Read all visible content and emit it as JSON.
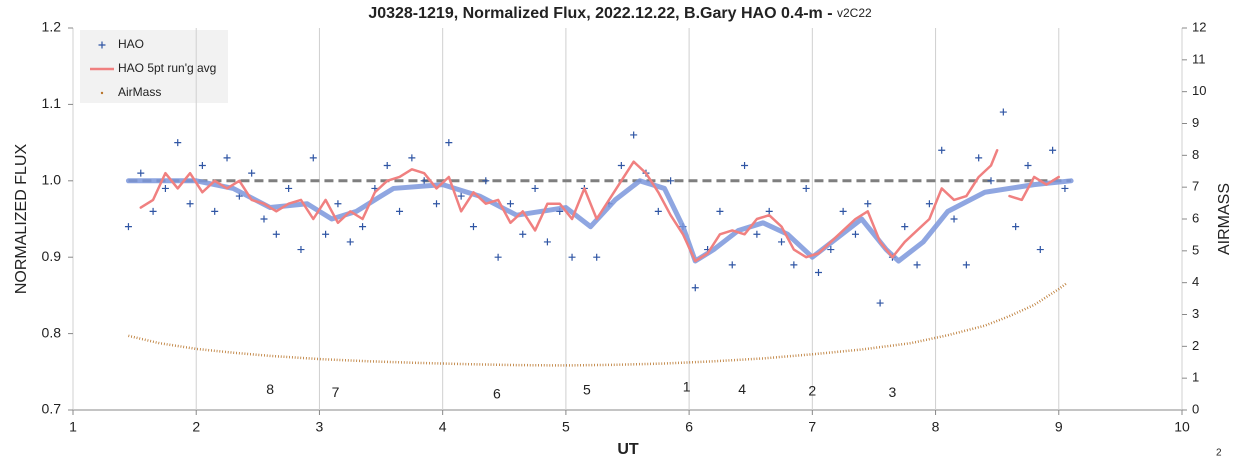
{
  "chart_data": {
    "type": "line",
    "title": "J0328-1219, Normalized Flux, 2022.12.22, B.Gary HAO 0.4-m - ",
    "subtitle": "v2C22",
    "x_label": "UT",
    "y_label": "NORMALIZED FLUX",
    "y2_label": "AIRMASS",
    "xlim": [
      1,
      10
    ],
    "xticks": [
      1,
      2,
      3,
      4,
      5,
      6,
      7,
      8,
      9,
      10
    ],
    "ylim": [
      0.7,
      1.2
    ],
    "yticks": [
      0.7,
      0.8,
      0.9,
      {
        "value": 1,
        "label": "1.0"
      },
      1.1,
      1.2
    ],
    "y2lim": [
      0,
      12
    ],
    "y2ticks": [
      0,
      1,
      2,
      3,
      4,
      5,
      6,
      7,
      8,
      9,
      10,
      11,
      12
    ],
    "grid": "x",
    "legend": "top-left",
    "series": [
      {
        "type": "line",
        "color": "#7f7f7f",
        "dash": true,
        "line_width": 3,
        "x": [
          1.45,
          9.1
        ],
        "values": [
          1,
          1
        ]
      },
      {
        "name": "HAO",
        "type": "scatter",
        "color": "#2f55a4",
        "x": [
          1.45,
          1.55,
          1.65,
          1.75,
          1.85,
          1.95,
          2.05,
          2.15,
          2.25,
          2.35,
          2.45,
          2.55,
          2.65,
          2.75,
          2.85,
          2.95,
          3.05,
          3.15,
          3.25,
          3.35,
          3.45,
          3.55,
          3.65,
          3.75,
          3.85,
          3.95,
          4.05,
          4.15,
          4.25,
          4.35,
          4.45,
          4.55,
          4.65,
          4.75,
          4.85,
          4.95,
          5.05,
          5.15,
          5.25,
          5.35,
          5.45,
          5.55,
          5.65,
          5.75,
          5.85,
          5.95,
          6.05,
          6.15,
          6.25,
          6.35,
          6.45,
          6.55,
          6.65,
          6.75,
          6.85,
          6.95,
          7.05,
          7.15,
          7.25,
          7.35,
          7.45,
          7.55,
          7.65,
          7.75,
          7.85,
          7.95,
          8.05,
          8.15,
          8.25,
          8.35,
          8.45,
          8.55,
          8.65,
          8.75,
          8.85,
          8.95,
          9.05
        ],
        "values": [
          0.94,
          1.01,
          0.96,
          0.99,
          1.05,
          0.97,
          1.02,
          0.96,
          1.03,
          0.98,
          1.01,
          0.95,
          0.93,
          0.99,
          0.91,
          1.03,
          0.93,
          0.97,
          0.92,
          0.94,
          0.99,
          1.02,
          0.96,
          1.03,
          1.0,
          0.97,
          1.05,
          0.98,
          0.94,
          1.0,
          0.9,
          0.97,
          0.93,
          0.99,
          0.92,
          0.96,
          0.9,
          0.99,
          0.9,
          0.97,
          1.02,
          1.06,
          1.01,
          0.96,
          1.0,
          0.94,
          0.86,
          0.91,
          0.96,
          0.89,
          1.02,
          0.93,
          0.96,
          0.92,
          0.89,
          0.99,
          0.88,
          0.91,
          0.96,
          0.93,
          0.97,
          0.84,
          0.9,
          0.94,
          0.89,
          0.97,
          1.04,
          0.95,
          0.89,
          1.03,
          1.0,
          1.09,
          0.94,
          1.02,
          0.91,
          1.04,
          0.99
        ]
      },
      {
        "name": "HAO 5pt run'g avg",
        "type": "line",
        "color": "#f08080",
        "line_width": 2.5,
        "x": [
          1.55,
          1.65,
          1.75,
          1.85,
          1.95,
          2.05,
          2.15,
          2.25,
          2.35,
          2.45,
          2.55,
          2.65,
          2.75,
          2.85,
          2.95,
          3.05,
          3.15,
          3.25,
          3.35,
          3.45,
          3.55,
          3.65,
          3.75,
          3.85,
          3.95,
          4.05,
          4.15,
          4.25,
          4.35,
          4.45,
          4.55,
          4.65,
          4.75,
          4.85,
          4.95,
          5.05,
          5.15,
          5.25,
          5.35,
          5.45,
          5.55,
          5.65,
          5.75,
          5.85,
          5.95,
          6.05,
          6.15,
          6.25,
          6.35,
          6.45,
          6.55,
          6.65,
          6.75,
          6.85,
          6.95,
          7.05,
          7.15,
          7.25,
          7.35,
          7.45,
          7.55,
          7.65,
          7.75,
          7.85,
          7.95,
          8.05,
          8.15,
          8.25,
          8.35,
          8.45,
          8.5,
          8.55,
          8.6,
          8.7,
          8.8,
          8.9,
          9.0
        ],
        "values": [
          0.965,
          0.975,
          1.01,
          0.99,
          1.01,
          0.985,
          1.0,
          0.99,
          1.0,
          0.975,
          0.97,
          0.96,
          0.97,
          0.975,
          0.95,
          0.975,
          0.945,
          0.96,
          0.95,
          0.985,
          1.0,
          1.005,
          1.015,
          1.01,
          0.99,
          1.005,
          0.96,
          0.985,
          0.97,
          0.975,
          0.945,
          0.96,
          0.935,
          0.97,
          0.97,
          0.95,
          0.99,
          0.95,
          0.975,
          1.0,
          1.025,
          1.01,
          0.985,
          0.955,
          0.93,
          0.895,
          0.905,
          0.93,
          0.935,
          0.93,
          0.95,
          0.955,
          0.94,
          0.91,
          0.9,
          0.905,
          0.92,
          0.935,
          0.95,
          0.96,
          0.92,
          0.9,
          0.92,
          0.935,
          0.95,
          0.99,
          0.975,
          0.98,
          1.005,
          1.02,
          1.04,
          null,
          0.98,
          0.975,
          1.005,
          0.995,
          1.005
        ]
      },
      {
        "type": "line",
        "color": "#7b96dc",
        "line_width": 5,
        "x": [
          1.45,
          2.0,
          2.3,
          2.6,
          2.9,
          3.1,
          3.3,
          3.6,
          4.0,
          4.3,
          4.6,
          5.0,
          5.2,
          5.4,
          5.6,
          5.8,
          5.95,
          6.05,
          6.2,
          6.4,
          6.6,
          6.8,
          7.0,
          7.2,
          7.4,
          7.6,
          7.7,
          7.9,
          8.1,
          8.4,
          8.8,
          9.1
        ],
        "values": [
          1.0,
          1.0,
          0.99,
          0.965,
          0.97,
          0.95,
          0.96,
          0.99,
          0.995,
          0.98,
          0.955,
          0.965,
          0.94,
          0.975,
          1.0,
          0.99,
          0.94,
          0.895,
          0.91,
          0.935,
          0.945,
          0.93,
          0.9,
          0.925,
          0.95,
          0.91,
          0.895,
          0.92,
          0.96,
          0.985,
          0.995,
          1.0
        ]
      },
      {
        "name": "AirMass",
        "type": "line",
        "axis": "y2",
        "color": "#b8742a",
        "dotted": true,
        "line_width": 2.5,
        "x": [
          1.45,
          1.7,
          2.0,
          2.3,
          2.6,
          3.0,
          3.4,
          3.8,
          4.2,
          4.6,
          5.0,
          5.4,
          5.8,
          6.2,
          6.6,
          7.0,
          7.4,
          7.8,
          8.1,
          8.4,
          8.6,
          8.8,
          9.0,
          9.07
        ],
        "values": [
          2.33,
          2.1,
          1.92,
          1.8,
          1.7,
          1.6,
          1.53,
          1.48,
          1.44,
          1.41,
          1.4,
          1.42,
          1.46,
          1.53,
          1.62,
          1.75,
          1.9,
          2.1,
          2.35,
          2.65,
          2.95,
          3.3,
          3.8,
          4.0
        ]
      }
    ],
    "annotations": [
      {
        "text": "8",
        "x": 2.6,
        "y": 0.726
      },
      {
        "text": "7",
        "x": 3.13,
        "y": 0.722
      },
      {
        "text": "6",
        "x": 4.44,
        "y": 0.72
      },
      {
        "text": "5",
        "x": 5.17,
        "y": 0.725
      },
      {
        "text": "1",
        "x": 5.98,
        "y": 0.729
      },
      {
        "text": "4",
        "x": 6.43,
        "y": 0.726
      },
      {
        "text": "2",
        "x": 7.0,
        "y": 0.724
      },
      {
        "text": "3",
        "x": 7.65,
        "y": 0.722
      }
    ],
    "page_number": "2"
  }
}
